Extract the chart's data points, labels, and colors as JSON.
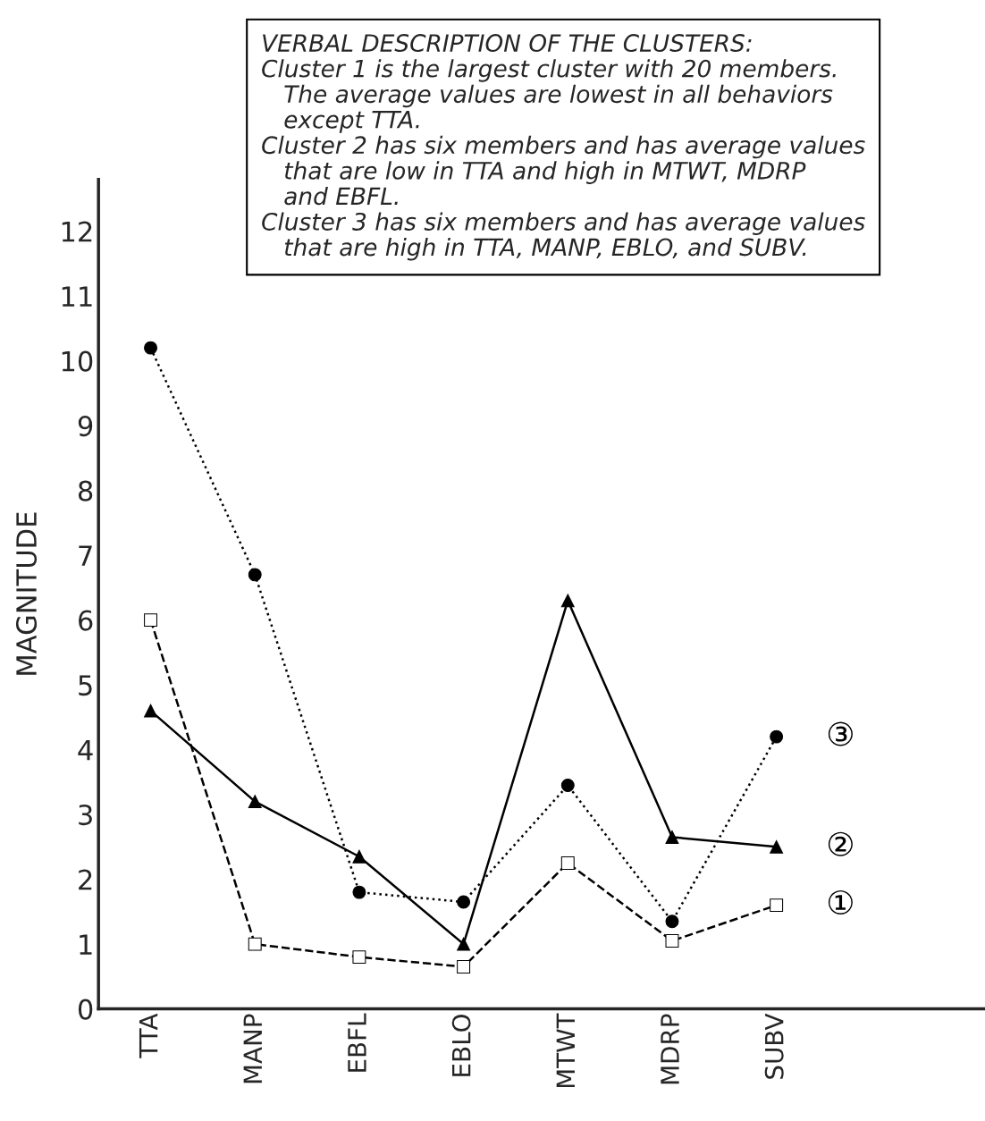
{
  "chart_data": {
    "type": "line",
    "ylabel": "MAGNITUDE",
    "categories": [
      "TTA",
      "MANP",
      "EBFL",
      "EBLO",
      "MTWT",
      "MDRP",
      "SUBV"
    ],
    "series": [
      {
        "name": "①",
        "color": "#000000",
        "marker": "square",
        "line_style": "dashed",
        "values": [
          6.0,
          1.0,
          0.8,
          0.65,
          2.25,
          1.05,
          1.6
        ]
      },
      {
        "name": "②",
        "color": "#000000",
        "marker": "triangle",
        "line_style": "solid",
        "values": [
          4.6,
          3.2,
          2.35,
          1.0,
          6.3,
          2.65,
          2.5
        ]
      },
      {
        "name": "③",
        "color": "#000000",
        "marker": "circle",
        "line_style": "dotted",
        "values": [
          10.2,
          6.7,
          1.8,
          1.65,
          3.45,
          1.35,
          4.2
        ]
      }
    ],
    "ylim": [
      0,
      12.8
    ],
    "yticks": [
      0,
      1,
      2,
      3,
      4,
      5,
      6,
      7,
      8,
      9,
      10,
      11,
      12
    ],
    "grid": false,
    "legend": false,
    "annotations": [
      "VERBAL DESCRIPTION OF THE CLUSTERS:",
      "Cluster 1 is the largest cluster with 20 members.\n   The average values are lowest in all behaviors\n   except TTA.",
      "Cluster 2 has six members and has average values\n   that are low in TTA and high in MTWT, MDRP\n   and EBFL.",
      "Cluster 3 has six members and has average values\n   that are high in TTA, MANP, EBLO, and SUBV."
    ]
  }
}
